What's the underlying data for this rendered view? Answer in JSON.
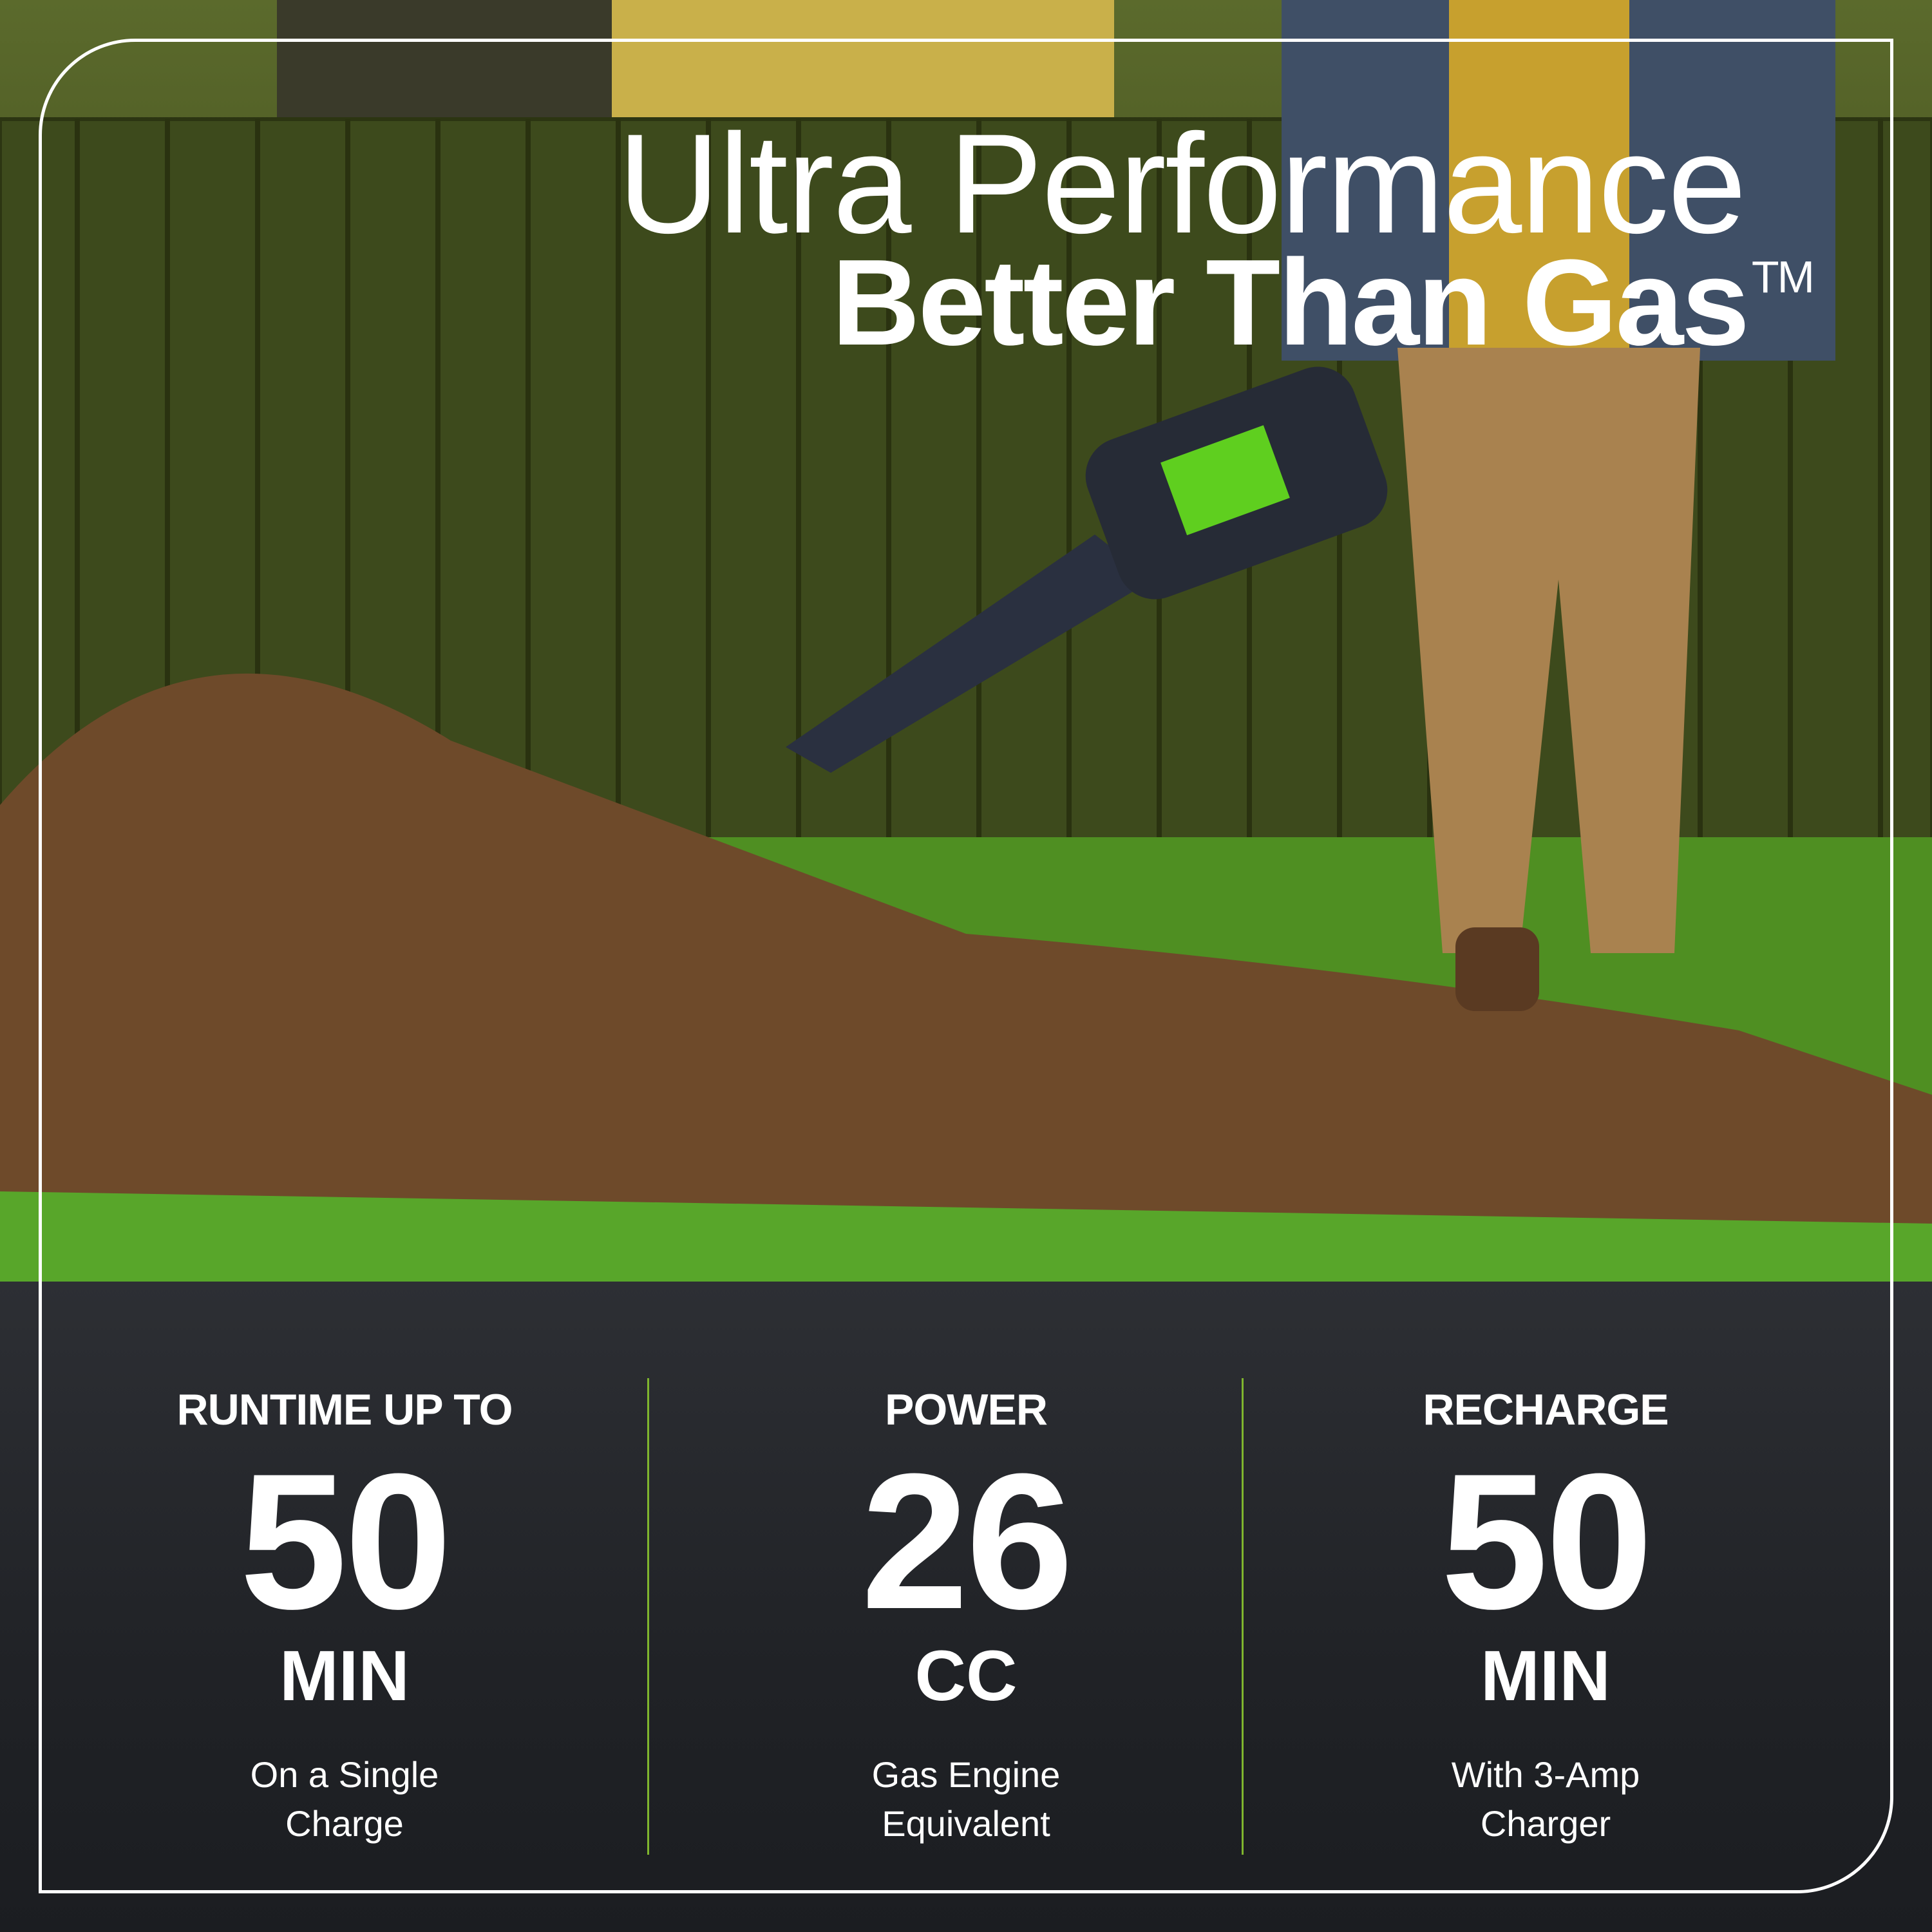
{
  "headline": {
    "line1": "Ultra Performance",
    "line2": "Better Than Gas",
    "trademark": "TM"
  },
  "stats": [
    {
      "heading": "RUNTIME UP TO",
      "value": "50",
      "unit": "MIN",
      "sub1": "On a Single",
      "sub2": "Charge"
    },
    {
      "heading": "POWER",
      "value": "26",
      "unit": "CC",
      "sub1": "Gas Engine",
      "sub2": "Equivalent"
    },
    {
      "heading": "RECHARGE",
      "value": "50",
      "unit": "MIN",
      "sub1": "With 3-Amp",
      "sub2": "Charger"
    }
  ],
  "colors": {
    "panel": "#202226",
    "divider": "#7fb52e",
    "text": "#ffffff",
    "brand_green": "#6cc417"
  }
}
